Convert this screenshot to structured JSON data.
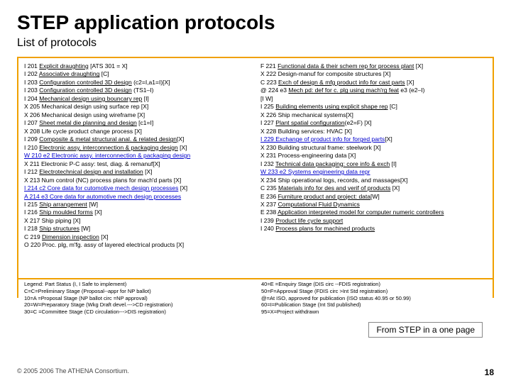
{
  "title": "STEP application protocols",
  "subtitle": "List of protocols",
  "caption": "From STEP in a one page",
  "copyright": "© 2005 2006 The ATHENA Consortium.",
  "page_number": "18",
  "styling": {
    "panel_border_color": "#f0a000",
    "link_blue": "#0000cc",
    "background": "#ffffff",
    "title_fontsize": 28,
    "subtitle_fontsize": 16,
    "list_fontsize": 8.5,
    "legend_fontsize": 7.5,
    "caption_fontsize": 12
  },
  "left": [
    {
      "pre": "I 201 ",
      "mid": "Explicit draughting",
      "suf": " [ATS 301 =   X]",
      "u": true
    },
    {
      "pre": "I 202 ",
      "mid": "Associative draughting",
      "suf": "  [C]",
      "u": true
    },
    {
      "pre": "I 203 ",
      "mid": "Configuration controlled 3D design",
      "suf": " (c2=I,a1=I)[X]",
      "u": true
    },
    {
      "pre": "I 203 ",
      "mid": "Configuration controlled 3D design",
      "suf": " (TS1–I)",
      "u": true
    },
    {
      "pre": "I 204 ",
      "mid": "Mechanical  design using bouncary rep",
      "suf": " [I]",
      "u": true
    },
    {
      "pre": "X 205 Mechanical design using surface rep [X]",
      "mid": "",
      "suf": ""
    },
    {
      "pre": "X 206 Mechanical design using wireframe [X]",
      "mid": "",
      "suf": ""
    },
    {
      "pre": "I 207 ",
      "mid": "Sheet metal die planning and design",
      "suf": " [c1=I]",
      "u": true
    },
    {
      "pre": "X 208 Life cycle product change process [X]",
      "mid": "",
      "suf": ""
    },
    {
      "pre": "I 209 ",
      "mid": "Composite & metal structural anal. & related design",
      "suf": "[X]",
      "u": true
    },
    {
      "pre": "I 210 ",
      "mid": "Electronic assy, interconnection & packaging design",
      "suf": " [X]",
      "u": true
    },
    {
      "pre": "",
      "mid": "W 210 e2 Electronic assy. interconnection & packaging design",
      "suf": "",
      "blue": true,
      "u": true
    },
    {
      "pre": "X 211 Electronic P-C assy: test, diag. & remanuf[X]",
      "mid": "",
      "suf": ""
    },
    {
      "pre": "I 212 ",
      "mid": "Electrotechnical design and installation",
      "suf": " [X]",
      "u": true
    },
    {
      "pre": "X 213 Num control (NC) process plans for mach'd parts [X]",
      "mid": "",
      "suf": ""
    },
    {
      "pre": "",
      "mid": "I 214 c2 Core data for cutomotive mech design processes",
      "suf": " [X]",
      "blue": true,
      "u": true
    },
    {
      "pre": "",
      "mid": "A 214 e3 Core data for automotive mech design processes",
      "suf": "",
      "blue": true,
      "u": true
    },
    {
      "pre": "I 215 ",
      "mid": "Ship arrangement",
      "suf": " [W]",
      "u": true
    },
    {
      "pre": "I 216 ",
      "mid": "Ship moulded forms",
      "suf": " [X]",
      "u": true
    },
    {
      "pre": "X 217 Ship piping [X]",
      "mid": "",
      "suf": ""
    },
    {
      "pre": "I 218 ",
      "mid": "Ship structures",
      "suf": " [W]",
      "u": true
    },
    {
      "pre": "C 219 ",
      "mid": "Dimension inspection",
      "suf": " [X]",
      "u": true
    },
    {
      "pre": "O 220 Proc. plg, m'fg. assy of layered electrical products [X]",
      "mid": "",
      "suf": ""
    }
  ],
  "right": [
    {
      "pre": "F 221 ",
      "mid": "Functional data & their schem rep for process plant",
      "suf": " [X]",
      "u": true
    },
    {
      "pre": "X 222 Design-manuf for composite structures [X]",
      "mid": "",
      "suf": ""
    },
    {
      "pre": "C 223 ",
      "mid": "Exch of design & mfg product info for cast parts",
      "suf": " [X]",
      "u": true
    },
    {
      "pre": "@ 224 e3 ",
      "mid": "Mech pd: def for c. plg using mach'rg feat",
      "suf": " e3 (e2–I)",
      "u": true
    },
    {
      "pre": "[I W]",
      "mid": "",
      "suf": ""
    },
    {
      "pre": "I 225 ",
      "mid": "Building elements using explicit shape rep",
      "suf": "   [C]",
      "u": true
    },
    {
      "pre": "X 226 Ship mechanical systems[X]",
      "mid": "",
      "suf": ""
    },
    {
      "pre": "I 227 ",
      "mid": "Plant spatial configuration",
      "suf": "(e2=F) [X]",
      "u": true
    },
    {
      "pre": "X 228 Building services: HVAC [X]",
      "mid": "",
      "suf": ""
    },
    {
      "pre": "",
      "mid": "I 229 Exchange of product info for forged parts",
      "suf": "[X]",
      "blue": true,
      "u": true
    },
    {
      "pre": "X 230 Building structural frame: steelwork [X]",
      "mid": "",
      "suf": ""
    },
    {
      "pre": "X 231 Process-engineering data [X]",
      "mid": "",
      "suf": ""
    },
    {
      "pre": "I 232 ",
      "mid": "Technical data packaging: core info & exch",
      "suf": " [I]",
      "u": true
    },
    {
      "pre": "",
      "mid": "W 233 e2 Systems engineering data repr",
      "suf": "",
      "blue": true,
      "u": true
    },
    {
      "pre": "X 234 Ship operational logs, records, and massages[X]",
      "mid": "",
      "suf": ""
    },
    {
      "pre": "C 235 ",
      "mid": "Materials info for des and verif of products",
      "suf": " [X]",
      "u": true
    },
    {
      "pre": "E 236 ",
      "mid": "Furniture product and project: data",
      "suf": "[W]",
      "u": true
    },
    {
      "pre": "X 237 ",
      "mid": "Computational Fluid Dynamics",
      "suf": "",
      "u": true
    },
    {
      "pre": "E 238 ",
      "mid": "Application interpreted model for computer numeric controllers",
      "suf": "",
      "u": true
    },
    {
      "pre": "I 239 ",
      "mid": "Product life cycle support",
      "suf": "",
      "u": true
    },
    {
      "pre": "I 240 ",
      "mid": "Process plans for machined products",
      "suf": "",
      "u": true
    }
  ],
  "legend_left": [
    "Legend: Part Status (I, I Safe to implement)",
    "C=C=Preliminary Stage (Proposal--appr for NP ballot)",
    "10=A =Proposal Stage (NP ballot circ  =NP approval)",
    "20=W=Preparatory Stage (Wkg Draft devel.--->CD registration)",
    "30=C =Committee Stage (CD circulation--->DIS registration)"
  ],
  "legend_right": [
    "40=E =Enquiry Stage (DIS circ --FDIS registration)",
    "50=F=Approval Stage (FDIS circ  >Int Std registration)",
    "@=At ISO, approved for publication (ISO status 40.95 or 50.99)",
    "60=I=Publication Stage (Int Std published)",
    "95=X=Project withdrawn"
  ]
}
